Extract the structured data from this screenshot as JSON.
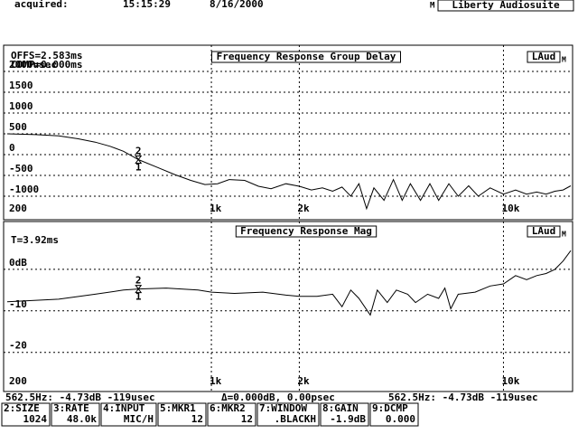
{
  "header": {
    "label": "acquired:",
    "time": "15:15:29",
    "date": "8/16/2000",
    "mode": "M",
    "app": "Liberty Audiosuite"
  },
  "chart_data": [
    {
      "type": "line",
      "title": "Frequency Response Group Delay",
      "annotations": [
        "OFFS=2.583ms",
        "COMP=0.000ms"
      ],
      "channel": "M",
      "xscale": "log",
      "xlim": [
        200,
        17000
      ],
      "xticks": [
        200,
        {
          "value": 1000,
          "label": "1k"
        },
        {
          "value": 2000,
          "label": "2k"
        },
        {
          "value": 10000,
          "label": "10k"
        }
      ],
      "ylim": [
        -1500,
        2500
      ],
      "yticks": [
        {
          "value": 2000,
          "label": "2000usec"
        },
        1500,
        1000,
        500,
        0,
        -500,
        -1000
      ],
      "grid": true,
      "marker": {
        "x": 562.5,
        "labels": [
          "2",
          "1"
        ]
      },
      "x": [
        200,
        250,
        300,
        350,
        400,
        450,
        500,
        562.5,
        650,
        750,
        850,
        950,
        1050,
        1150,
        1300,
        1450,
        1600,
        1800,
        2000,
        2200,
        2400,
        2600,
        2800,
        3000,
        3200,
        3400,
        3600,
        3900,
        4200,
        4500,
        4800,
        5200,
        5600,
        6000,
        6500,
        7000,
        7600,
        8200,
        9000,
        10000,
        11000,
        12000,
        13000,
        14000,
        15000,
        16000,
        17000
      ],
      "series": [
        {
          "name": "LAud",
          "color": "#000000",
          "values": [
            500,
            480,
            450,
            380,
            300,
            200,
            80,
            -119,
            -300,
            -480,
            -620,
            -720,
            -700,
            -600,
            -620,
            -760,
            -820,
            -700,
            -760,
            -850,
            -800,
            -880,
            -780,
            -1000,
            -700,
            -1300,
            -800,
            -1100,
            -600,
            -1100,
            -700,
            -1100,
            -700,
            -1100,
            -700,
            -1000,
            -750,
            -1000,
            -800,
            -950,
            -850,
            -950,
            -900,
            -950,
            -880,
            -850,
            -750
          ]
        }
      ]
    },
    {
      "type": "line",
      "title": "Frequency Response Mag",
      "annotations": [
        "T=3.92ms"
      ],
      "channel": "M",
      "xscale": "log",
      "xlim": [
        200,
        17000
      ],
      "xticks": [
        200,
        {
          "value": 1000,
          "label": "1k"
        },
        {
          "value": 2000,
          "label": "2k"
        },
        {
          "value": 10000,
          "label": "10k"
        }
      ],
      "ylim": [
        -29,
        10
      ],
      "yticks": [
        {
          "value": 0,
          "label": "0dB"
        },
        -10,
        -20
      ],
      "grid": true,
      "marker": {
        "x": 562.5,
        "labels": [
          "2",
          "1"
        ]
      },
      "x": [
        200,
        300,
        400,
        500,
        562.5,
        700,
        900,
        1000,
        1200,
        1500,
        1800,
        2000,
        2300,
        2600,
        2800,
        3000,
        3200,
        3500,
        3700,
        4000,
        4300,
        4700,
        5000,
        5500,
        6000,
        6300,
        6600,
        7000,
        8000,
        9000,
        10000,
        11000,
        12000,
        13000,
        14000,
        15000,
        16000,
        17000
      ],
      "series": [
        {
          "name": "LAud",
          "color": "#000000",
          "values": [
            -7.8,
            -7.2,
            -6,
            -5,
            -4.73,
            -4.5,
            -5,
            -5.5,
            -5.8,
            -5.5,
            -6.2,
            -6.5,
            -6.5,
            -6,
            -9,
            -5,
            -7,
            -11,
            -5,
            -8,
            -5,
            -6,
            -8,
            -6,
            -7,
            -4.5,
            -9.5,
            -6,
            -5.5,
            -4,
            -3.5,
            -1.5,
            -2.5,
            -1.5,
            -1,
            0,
            2,
            4.5
          ]
        }
      ]
    }
  ],
  "status": {
    "left": "562.5Hz: -4.73dB -119usec",
    "delta": "Δ=0.000dB, 0.00psec",
    "right": "562.5Hz: -4.73dB -119usec"
  },
  "buttons": [
    {
      "label": "2:SIZE",
      "value": "1024"
    },
    {
      "label": "3:RATE",
      "value": "48.0k"
    },
    {
      "label": "4:INPUT",
      "value": "MIC/H"
    },
    {
      "label": "5:MKR1",
      "value": "12"
    },
    {
      "label": "6:MKR2",
      "value": "12"
    },
    {
      "label": "7:WINDOW",
      "value": ".BLACKH"
    },
    {
      "label": "8:GAIN",
      "value": "-1.9dB"
    },
    {
      "label": "9:DCMP",
      "value": "0.000"
    }
  ]
}
